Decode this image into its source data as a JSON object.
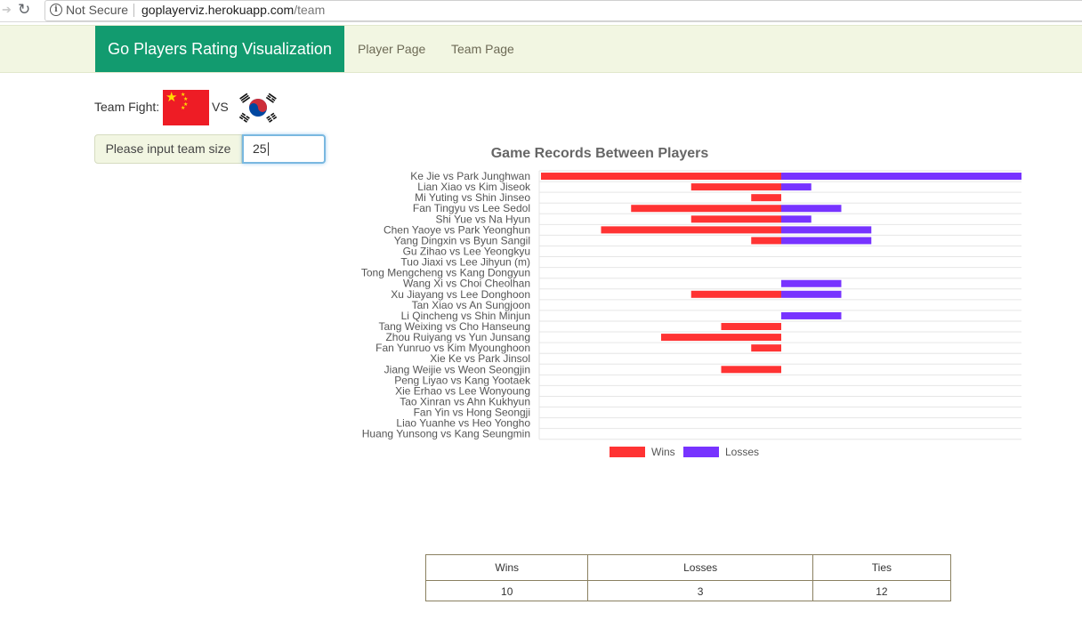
{
  "browser": {
    "security_label": "Not Secure",
    "url_host": "goplayerviz.herokuapp.com",
    "url_path": "/team"
  },
  "navbar": {
    "brand": "Go Players Rating Visualization",
    "links": [
      "Player Page",
      "Team Page"
    ],
    "brand_color": "#129b6f"
  },
  "team_fight": {
    "label": "Team Fight:",
    "vs": "VS",
    "team_a_flag": "china-flag-icon",
    "team_b_flag": "south-korea-flag-icon"
  },
  "team_size": {
    "label": "Please input team size",
    "value": "25"
  },
  "chart_data": {
    "type": "bar",
    "orientation": "horizontal-diverging",
    "title": "Game Records Between Players",
    "categories": [
      "Ke Jie vs Park Junghwan",
      "Lian Xiao vs Kim Jiseok",
      "Mi Yuting vs Shin Jinseo",
      "Fan Tingyu vs Lee Sedol",
      "Shi Yue vs Na Hyun",
      "Chen Yaoye vs Park Yeonghun",
      "Yang Dingxin vs Byun Sangil",
      "Gu Zihao vs Lee Yeongkyu",
      "Tuo Jiaxi vs Lee Jihyun (m)",
      "Tong Mengcheng vs Kang Dongyun",
      "Wang Xi vs Choi Cheolhan",
      "Xu Jiayang vs Lee Donghoon",
      "Tan Xiao vs An Sungjoon",
      "Li Qincheng vs Shin Minjun",
      "Tang Weixing vs Cho Hanseung",
      "Zhou Ruiyang vs Yun Junsang",
      "Fan Yunruo vs Kim Myounghoon",
      "Xie Ke vs Park Jinsol",
      "Jiang Weijie vs Weon Seongjin",
      "Peng Liyao vs Kang Yootaek",
      "Xie Erhao vs Lee Wonyoung",
      "Tao Xinran vs Ahn Kukhyun",
      "Fan Yin vs Hong Seongji",
      "Liao Yuanhe vs Heo Yongho",
      "Huang Yunsong vs Kang Seungmin"
    ],
    "series": [
      {
        "name": "Wins",
        "color": "#ff3333",
        "values": [
          8,
          3,
          1,
          5,
          3,
          6,
          1,
          0,
          0,
          0,
          0,
          3,
          0,
          0,
          2,
          4,
          1,
          0,
          2,
          0,
          0,
          0,
          0,
          0,
          0
        ]
      },
      {
        "name": "Losses",
        "color": "#7733ff",
        "values": [
          8,
          1,
          0,
          2,
          1,
          3,
          3,
          0,
          0,
          0,
          2,
          2,
          0,
          2,
          0,
          0,
          0,
          0,
          0,
          0,
          0,
          0,
          0,
          0,
          0
        ]
      }
    ],
    "xlim": [
      -8,
      8
    ],
    "legend": "bottom",
    "grid": true
  },
  "summary_table": {
    "headers": [
      "Wins",
      "Losses",
      "Ties"
    ],
    "values": [
      "10",
      "3",
      "12"
    ]
  }
}
